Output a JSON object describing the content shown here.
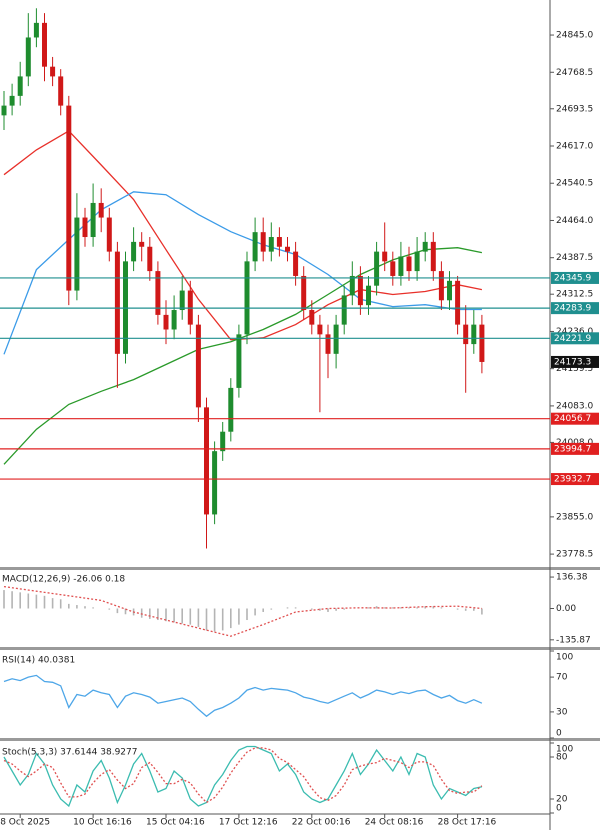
{
  "chart_data": [
    {
      "type": "candlestick",
      "categories": [
        null,
        null,
        "8 Oct 2025",
        null,
        null,
        null,
        null,
        null,
        null,
        null,
        null,
        "10 Oct 16:16",
        null,
        null,
        null,
        null,
        null,
        null,
        null,
        null,
        "15 Oct 04:16",
        null,
        null,
        null,
        null,
        null,
        null,
        null,
        null,
        "17 Oct 12:16",
        null,
        null,
        null,
        null,
        null,
        null,
        null,
        null,
        "22 Oct 00:16",
        null,
        null,
        null,
        null,
        null,
        null,
        null,
        null,
        "24 Oct 08:16",
        null,
        null,
        null,
        null,
        null,
        null,
        null,
        null,
        "28 Oct 17:16",
        null,
        null,
        null
      ],
      "open": [
        24680,
        24700,
        24720,
        24760,
        24840,
        24870,
        24780,
        24760,
        24700,
        24320,
        24470,
        24430,
        24500,
        24470,
        24400,
        24190,
        24380,
        24420,
        24410,
        24360,
        24270,
        24240,
        24280,
        24320,
        24250,
        24080,
        23860,
        23990,
        24030,
        24120,
        24230,
        24380,
        24440,
        24400,
        24430,
        24410,
        24400,
        24350,
        24280,
        24250,
        24230,
        24190,
        24250,
        24310,
        24350,
        24290,
        24330,
        24400,
        24380,
        24350,
        24390,
        24360,
        24400,
        24420,
        24360,
        24300,
        24340,
        24250,
        24210,
        24250
      ],
      "high": [
        24730,
        24745,
        24790,
        24890,
        24900,
        24890,
        24800,
        24775,
        24720,
        24520,
        24490,
        24540,
        24530,
        24490,
        24420,
        24400,
        24450,
        24440,
        24430,
        24380,
        24300,
        24310,
        24350,
        24340,
        24270,
        24100,
        24010,
        24050,
        24140,
        24250,
        24400,
        24470,
        24470,
        24460,
        24450,
        24430,
        24420,
        24370,
        24300,
        24270,
        24250,
        24270,
        24330,
        24380,
        24370,
        24350,
        24420,
        24460,
        24400,
        24420,
        24410,
        24430,
        24440,
        24440,
        24380,
        24360,
        24350,
        24290,
        24280,
        24270
      ],
      "low": [
        24650,
        24680,
        24700,
        24740,
        24820,
        24750,
        24740,
        24680,
        24290,
        24300,
        24410,
        24410,
        24440,
        24380,
        24120,
        24170,
        24360,
        24380,
        24340,
        24250,
        24210,
        24220,
        24260,
        24230,
        24050,
        23790,
        23840,
        23970,
        24010,
        24100,
        24210,
        24360,
        24380,
        24380,
        24390,
        24380,
        24330,
        24260,
        24230,
        24070,
        24140,
        24160,
        24230,
        24290,
        24270,
        24270,
        24310,
        24360,
        24330,
        24330,
        24340,
        24340,
        24380,
        24340,
        24280,
        24280,
        24230,
        24110,
        24190,
        24150
      ],
      "close": [
        24700,
        24720,
        24760,
        24840,
        24870,
        24780,
        24760,
        24700,
        24320,
        24470,
        24430,
        24500,
        24470,
        24400,
        24190,
        24380,
        24420,
        24410,
        24360,
        24270,
        24240,
        24280,
        24320,
        24250,
        24080,
        23860,
        23990,
        24030,
        24120,
        24230,
        24380,
        24440,
        24400,
        24430,
        24410,
        24400,
        24350,
        24280,
        24250,
        24230,
        24190,
        24250,
        24310,
        24350,
        24290,
        24330,
        24400,
        24380,
        24350,
        24390,
        24360,
        24400,
        24420,
        24360,
        24300,
        24340,
        24250,
        24210,
        24250,
        24173.3
      ],
      "up_color": "#1e8c2e",
      "down_color": "#d01818",
      "series": [
        {
          "color": "#e8302a",
          "x": [
            0,
            4,
            8,
            12,
            16,
            20,
            24,
            28,
            32,
            36,
            40,
            44,
            48,
            52,
            56,
            59
          ],
          "values": [
            24558,
            24609,
            24648,
            24578,
            24507,
            24404,
            24302,
            24219,
            24223,
            24250,
            24291,
            24322,
            24312,
            24318,
            24332,
            24322
          ]
        },
        {
          "color": "#3b9be8",
          "x": [
            0,
            4,
            8,
            12,
            16,
            20,
            24,
            28,
            32,
            36,
            40,
            44,
            48,
            52,
            56,
            59
          ],
          "values": [
            24189,
            24363,
            24425,
            24486,
            24523,
            24517,
            24476,
            24441,
            24414,
            24394,
            24353,
            24302,
            24287,
            24291,
            24281,
            24281
          ]
        },
        {
          "color": "#2a9a2a",
          "x": [
            0,
            4,
            8,
            12,
            16,
            20,
            24,
            28,
            32,
            36,
            40,
            44,
            48,
            52,
            56,
            59
          ],
          "values": [
            23963,
            24035,
            24086,
            24113,
            24137,
            24168,
            24199,
            24215,
            24240,
            24271,
            24312,
            24353,
            24383,
            24404,
            24408,
            24398
          ]
        }
      ],
      "levels": [
        {
          "value": 24345.9,
          "color": "#1f8f8f"
        },
        {
          "value": 24283.9,
          "color": "#1f8f8f"
        },
        {
          "value": 24221.9,
          "color": "#1f8f8f"
        },
        {
          "value": 24056.7,
          "color": "#e02020"
        },
        {
          "value": 23994.7,
          "color": "#e02020"
        },
        {
          "value": 23932.7,
          "color": "#e02020"
        }
      ],
      "last_price": 24173.3,
      "last_color": "#111111",
      "ylim": [
        23752,
        24917
      ],
      "yticks": [
        {
          "value": 24845,
          "label": "24845.0"
        },
        24768.5,
        24693.5,
        {
          "value": 24617,
          "label": "24617.0"
        },
        24540.5,
        {
          "value": 24464,
          "label": "24464.0"
        },
        24387.5,
        24312.5,
        {
          "value": 24236,
          "label": "24236.0"
        },
        24159.5,
        {
          "value": 24083,
          "label": "24083.0"
        },
        {
          "value": 24008,
          "label": "24008.0"
        },
        {
          "value": 23855,
          "label": "23855.0"
        },
        23778.5
      ]
    },
    {
      "type": "macd",
      "title": "MACD(12,26,9) -26.06 0.18",
      "values": [
        80,
        75,
        70,
        65,
        60,
        55,
        45,
        40,
        20,
        15,
        10,
        5,
        0,
        -5,
        -20,
        -25,
        -30,
        -40,
        -45,
        -50,
        -55,
        -60,
        -65,
        -70,
        -80,
        -95,
        -100,
        -95,
        -85,
        -70,
        -50,
        -30,
        -15,
        -5,
        0,
        5,
        5,
        0,
        -5,
        -10,
        -15,
        -10,
        -5,
        0,
        0,
        5,
        10,
        5,
        5,
        5,
        5,
        5,
        10,
        10,
        5,
        0,
        -5,
        -10,
        -10,
        -26.06
      ],
      "color": "#b4b4b4",
      "signal": {
        "color": "#e05050",
        "x": [
          0,
          4,
          8,
          12,
          16,
          20,
          24,
          28,
          32,
          36,
          40,
          44,
          48,
          52,
          56,
          59
        ],
        "values": [
          95,
          75,
          55,
          35,
          -15,
          -50,
          -85,
          -120,
          -70,
          -15,
          0,
          3,
          2,
          8,
          10,
          0.18
        ]
      },
      "ylim": [
        -167,
        167
      ],
      "yticks": [
        136.38,
        {
          "value": 0,
          "label": "0.00"
        },
        -135.87
      ]
    },
    {
      "type": "line",
      "title": "RSI(14) 40.0381",
      "series": [
        {
          "color": "#4da6e8",
          "dash": false,
          "values": [
            65,
            68,
            66,
            70,
            72,
            65,
            64,
            60,
            35,
            50,
            48,
            55,
            52,
            50,
            35,
            48,
            52,
            50,
            47,
            40,
            42,
            44,
            46,
            42,
            33,
            25,
            32,
            35,
            40,
            46,
            55,
            58,
            55,
            57,
            56,
            55,
            52,
            47,
            45,
            42,
            40,
            44,
            48,
            52,
            46,
            50,
            55,
            53,
            50,
            53,
            51,
            54,
            55,
            50,
            46,
            49,
            43,
            40,
            44,
            40.0381
          ]
        }
      ],
      "ylim": [
        0,
        100
      ],
      "yticks": [
        100,
        70,
        30,
        0
      ]
    },
    {
      "type": "line",
      "title": "Stoch(5,3,3) 37.6144 38.9277",
      "series": [
        {
          "color": "#3bbcb0",
          "dash": false,
          "values": [
            80,
            60,
            40,
            55,
            85,
            70,
            40,
            20,
            10,
            40,
            30,
            60,
            75,
            50,
            15,
            40,
            70,
            85,
            60,
            30,
            35,
            60,
            50,
            20,
            10,
            15,
            40,
            55,
            75,
            90,
            95,
            95,
            90,
            85,
            60,
            70,
            55,
            30,
            20,
            15,
            20,
            40,
            60,
            85,
            55,
            70,
            90,
            75,
            60,
            80,
            55,
            85,
            80,
            40,
            20,
            35,
            30,
            25,
            35,
            37.6144
          ]
        },
        {
          "color": "#e05050",
          "dash": true,
          "values": [
            75,
            70,
            60,
            52,
            60,
            70,
            65,
            43,
            23,
            23,
            27,
            43,
            55,
            62,
            47,
            35,
            42,
            65,
            72,
            58,
            42,
            42,
            48,
            43,
            27,
            15,
            22,
            37,
            57,
            73,
            87,
            93,
            93,
            90,
            78,
            72,
            62,
            52,
            35,
            22,
            18,
            25,
            40,
            62,
            67,
            70,
            72,
            78,
            75,
            72,
            65,
            73,
            73,
            68,
            48,
            32,
            28,
            30,
            30,
            38.9277
          ]
        }
      ],
      "ylim": [
        0,
        100
      ],
      "yticks": [
        100,
        80,
        20,
        0
      ]
    }
  ]
}
